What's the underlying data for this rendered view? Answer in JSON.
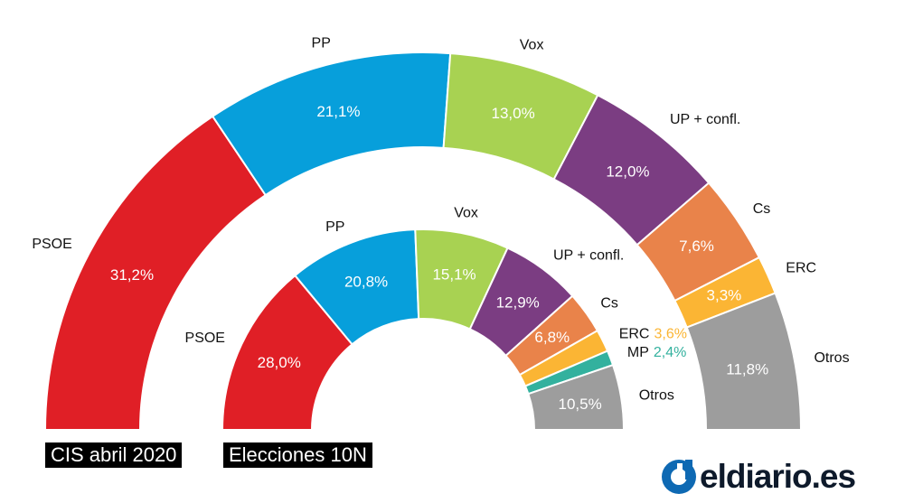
{
  "chart_data": [
    {
      "type": "pie",
      "subtype": "half-donut",
      "title": "CIS abril 2020",
      "categories": [
        "PSOE",
        "PP",
        "Vox",
        "UP + confl.",
        "Cs",
        "ERC",
        "Otros"
      ],
      "values": [
        31.2,
        21.1,
        13.0,
        12.0,
        7.6,
        3.3,
        11.8
      ],
      "labels": [
        "31,2%",
        "21,1%",
        "13,0%",
        "12,0%",
        "7,6%",
        "3,3%",
        "11,8%"
      ],
      "colors": [
        "#e01f26",
        "#079fdb",
        "#a8d252",
        "#7b3d82",
        "#e9834a",
        "#fbb534",
        "#9d9d9d"
      ],
      "label_inside": [
        true,
        true,
        true,
        true,
        true,
        true,
        true
      ]
    },
    {
      "type": "pie",
      "subtype": "half-donut",
      "title": "Elecciones 10N",
      "categories": [
        "PSOE",
        "PP",
        "Vox",
        "UP + confl.",
        "Cs",
        "ERC",
        "MP",
        "Otros"
      ],
      "values": [
        28.0,
        20.8,
        15.1,
        12.9,
        6.8,
        3.6,
        2.4,
        10.5
      ],
      "labels": [
        "28,0%",
        "20,8%",
        "15,1%",
        "12,9%",
        "6,8%",
        "3,6%",
        "2,4%",
        "10,5%"
      ],
      "colors": [
        "#e01f26",
        "#079fdb",
        "#a8d252",
        "#7b3d82",
        "#e9834a",
        "#fbb534",
        "#33b19e",
        "#9d9d9d"
      ],
      "label_inside": [
        true,
        true,
        true,
        true,
        true,
        false,
        false,
        true
      ]
    }
  ],
  "captions": {
    "outer": "CIS abril 2020",
    "inner": "Elecciones 10N"
  },
  "brand": {
    "name": "eldiario.es",
    "color": "#0e1a2b",
    "icon": "eldiario-logo-icon"
  }
}
